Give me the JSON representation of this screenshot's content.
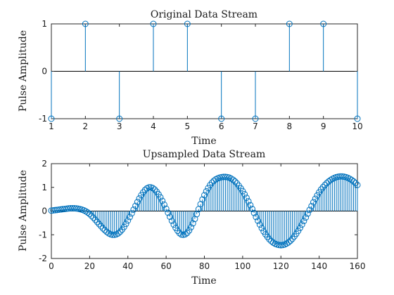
{
  "chart_data": [
    {
      "type": "stem",
      "title": "Original Data Stream",
      "xlabel": "Time",
      "ylabel": "Pulse Amplitude",
      "xlim": [
        1,
        10
      ],
      "ylim": [
        -1,
        1
      ],
      "xticks": [
        1,
        2,
        3,
        4,
        5,
        6,
        7,
        8,
        9,
        10
      ],
      "yticks": [
        -1,
        0,
        1
      ],
      "x": [
        1,
        2,
        3,
        4,
        5,
        6,
        7,
        8,
        9,
        10
      ],
      "values": [
        -1,
        1,
        -1,
        1,
        1,
        -1,
        -1,
        1,
        1,
        -1
      ]
    },
    {
      "type": "stem",
      "title": "Upsampled Data Stream",
      "xlabel": "Time",
      "ylabel": "Pulse Amplitude",
      "xlim": [
        0,
        160
      ],
      "ylim": [
        -2,
        2
      ],
      "xticks": [
        0,
        20,
        40,
        60,
        80,
        100,
        120,
        140,
        160
      ],
      "yticks": [
        -2,
        -1,
        0,
        1,
        2
      ],
      "x": [
        0,
        1,
        2,
        3,
        4,
        5,
        6,
        7,
        8,
        9,
        10,
        11,
        12,
        13,
        14,
        15,
        16,
        17,
        18,
        19,
        20,
        21,
        22,
        23,
        24,
        25,
        26,
        27,
        28,
        29,
        30,
        31,
        32,
        33,
        34,
        35,
        36,
        37,
        38,
        39,
        40,
        41,
        42,
        43,
        44,
        45,
        46,
        47,
        48,
        49,
        50,
        51,
        52,
        53,
        54,
        55,
        56,
        57,
        58,
        59,
        60,
        61,
        62,
        63,
        64,
        65,
        66,
        67,
        68,
        69,
        70,
        71,
        72,
        73,
        74,
        75,
        76,
        77,
        78,
        79,
        80,
        81,
        82,
        83,
        84,
        85,
        86,
        87,
        88,
        89,
        90,
        91,
        92,
        93,
        94,
        95,
        96,
        97,
        98,
        99,
        100,
        101,
        102,
        103,
        104,
        105,
        106,
        107,
        108,
        109,
        110,
        111,
        112,
        113,
        114,
        115,
        116,
        117,
        118,
        119,
        120,
        121,
        122,
        123,
        124,
        125,
        126,
        127,
        128,
        129,
        130,
        131,
        132,
        133,
        134,
        135,
        136,
        137,
        138,
        139,
        140,
        141,
        142,
        143,
        144,
        145,
        146,
        147,
        148,
        149,
        150,
        151,
        152,
        153,
        154,
        155,
        156,
        157,
        158,
        159,
        160
      ],
      "values": [
        0.02,
        0.03,
        0.04,
        0.05,
        0.06,
        0.07,
        0.08,
        0.09,
        0.1,
        0.11,
        0.12,
        0.12,
        0.12,
        0.11,
        0.1,
        0.08,
        0.06,
        0.03,
        -0.01,
        -0.06,
        -0.12,
        -0.2,
        -0.28,
        -0.37,
        -0.46,
        -0.55,
        -0.64,
        -0.73,
        -0.81,
        -0.88,
        -0.94,
        -0.98,
        -1.0,
        -1.0,
        -0.98,
        -0.94,
        -0.87,
        -0.78,
        -0.67,
        -0.54,
        -0.4,
        -0.25,
        -0.1,
        0.06,
        0.22,
        0.38,
        0.53,
        0.67,
        0.79,
        0.89,
        0.96,
        1.0,
        1.0,
        0.97,
        0.91,
        0.82,
        0.71,
        0.58,
        0.43,
        0.27,
        0.1,
        -0.07,
        -0.24,
        -0.41,
        -0.57,
        -0.71,
        -0.83,
        -0.93,
        -0.99,
        -1.0,
        -0.98,
        -0.92,
        -0.82,
        -0.68,
        -0.52,
        -0.33,
        -0.13,
        0.08,
        0.29,
        0.49,
        0.67,
        0.83,
        0.97,
        1.1,
        1.2,
        1.28,
        1.34,
        1.38,
        1.41,
        1.43,
        1.44,
        1.44,
        1.43,
        1.41,
        1.37,
        1.32,
        1.25,
        1.17,
        1.07,
        0.96,
        0.84,
        0.71,
        0.56,
        0.41,
        0.25,
        0.09,
        -0.08,
        -0.25,
        -0.41,
        -0.57,
        -0.72,
        -0.86,
        -0.98,
        -1.09,
        -1.19,
        -1.27,
        -1.33,
        -1.38,
        -1.41,
        -1.43,
        -1.44,
        -1.43,
        -1.41,
        -1.37,
        -1.32,
        -1.25,
        -1.17,
        -1.07,
        -0.96,
        -0.84,
        -0.71,
        -0.57,
        -0.42,
        -0.27,
        -0.11,
        0.05,
        0.21,
        0.37,
        0.52,
        0.66,
        0.79,
        0.91,
        1.01,
        1.1,
        1.18,
        1.25,
        1.31,
        1.36,
        1.4,
        1.43,
        1.45,
        1.46,
        1.46,
        1.45,
        1.43,
        1.4,
        1.36,
        1.31,
        1.25,
        1.18,
        1.1
      ]
    }
  ]
}
